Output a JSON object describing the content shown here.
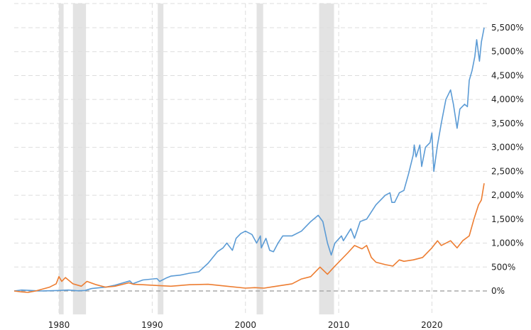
{
  "chart_data": {
    "type": "line",
    "title": "",
    "xlabel": "",
    "ylabel": "",
    "xlim": [
      1975.2,
      2025.6
    ],
    "ylim": [
      -250,
      6000
    ],
    "grid": true,
    "y_axis_side": "right",
    "x_ticks": [
      1980,
      1990,
      2000,
      2010,
      2020
    ],
    "x_tick_labels": [
      "1980",
      "1990",
      "2000",
      "2010",
      "2020"
    ],
    "y_ticks": [
      0,
      500,
      1000,
      1500,
      2000,
      2500,
      3000,
      3500,
      4000,
      4500,
      5000,
      5500
    ],
    "y_tick_labels": [
      "0%",
      "500%",
      "1,000%",
      "1,500%",
      "2,000%",
      "2,500%",
      "3,000%",
      "3,500%",
      "4,000%",
      "4,500%",
      "5,000%",
      "5,500%"
    ],
    "recessions": [
      [
        1980.0,
        1980.5
      ],
      [
        1981.5,
        1982.9
      ],
      [
        1990.6,
        1991.2
      ],
      [
        2001.2,
        2001.9
      ],
      [
        2007.9,
        2009.5
      ]
    ],
    "series": [
      {
        "name": "Blue series",
        "color": "#5b9bd5",
        "points": [
          [
            1975.2,
            0
          ],
          [
            1976,
            20
          ],
          [
            1977,
            10
          ],
          [
            1978,
            0
          ],
          [
            1979,
            5
          ],
          [
            1980,
            10
          ],
          [
            1981,
            20
          ],
          [
            1982,
            5
          ],
          [
            1982.8,
            10
          ],
          [
            1983.5,
            50
          ],
          [
            1985,
            80
          ],
          [
            1986,
            120
          ],
          [
            1987.6,
            210
          ],
          [
            1987.9,
            150
          ],
          [
            1989,
            230
          ],
          [
            1990.5,
            260
          ],
          [
            1990.8,
            200
          ],
          [
            1991.5,
            270
          ],
          [
            1992,
            310
          ],
          [
            1993,
            330
          ],
          [
            1994,
            370
          ],
          [
            1995,
            400
          ],
          [
            1996,
            580
          ],
          [
            1997,
            820
          ],
          [
            1997.6,
            900
          ],
          [
            1998,
            1000
          ],
          [
            1998.6,
            850
          ],
          [
            1999,
            1100
          ],
          [
            1999.5,
            1200
          ],
          [
            2000,
            1250
          ],
          [
            2000.7,
            1180
          ],
          [
            2001.2,
            1000
          ],
          [
            2001.6,
            1150
          ],
          [
            2001.7,
            900
          ],
          [
            2002.2,
            1100
          ],
          [
            2002.6,
            850
          ],
          [
            2003,
            820
          ],
          [
            2003.5,
            1000
          ],
          [
            2004,
            1150
          ],
          [
            2005,
            1150
          ],
          [
            2006,
            1250
          ],
          [
            2007,
            1450
          ],
          [
            2007.8,
            1580
          ],
          [
            2008.3,
            1450
          ],
          [
            2008.8,
            1000
          ],
          [
            2009.2,
            750
          ],
          [
            2009.6,
            1000
          ],
          [
            2010.3,
            1150
          ],
          [
            2010.5,
            1050
          ],
          [
            2011.3,
            1300
          ],
          [
            2011.7,
            1100
          ],
          [
            2012.3,
            1450
          ],
          [
            2013,
            1500
          ],
          [
            2014,
            1800
          ],
          [
            2015,
            2000
          ],
          [
            2015.5,
            2050
          ],
          [
            2015.7,
            1850
          ],
          [
            2016,
            1850
          ],
          [
            2016.5,
            2050
          ],
          [
            2017,
            2100
          ],
          [
            2017.5,
            2450
          ],
          [
            2018,
            2850
          ],
          [
            2018.1,
            3050
          ],
          [
            2018.3,
            2800
          ],
          [
            2018.7,
            3050
          ],
          [
            2018.9,
            2600
          ],
          [
            2019.3,
            3000
          ],
          [
            2019.8,
            3100
          ],
          [
            2020.0,
            3300
          ],
          [
            2020.2,
            2500
          ],
          [
            2020.6,
            3050
          ],
          [
            2021,
            3500
          ],
          [
            2021.5,
            4000
          ],
          [
            2022,
            4200
          ],
          [
            2022.3,
            3900
          ],
          [
            2022.7,
            3400
          ],
          [
            2023,
            3800
          ],
          [
            2023.5,
            3900
          ],
          [
            2023.8,
            3850
          ],
          [
            2024,
            4400
          ],
          [
            2024.3,
            4600
          ],
          [
            2024.6,
            4900
          ],
          [
            2024.8,
            5250
          ],
          [
            2025.1,
            4800
          ],
          [
            2025.3,
            5200
          ],
          [
            2025.6,
            5500
          ]
        ]
      },
      {
        "name": "Orange series",
        "color": "#ed7d31",
        "points": [
          [
            1975.2,
            0
          ],
          [
            1976,
            -20
          ],
          [
            1976.7,
            -30
          ],
          [
            1977.5,
            0
          ],
          [
            1979,
            80
          ],
          [
            1979.7,
            150
          ],
          [
            1980,
            300
          ],
          [
            1980.3,
            200
          ],
          [
            1980.7,
            280
          ],
          [
            1981.5,
            150
          ],
          [
            1982.4,
            100
          ],
          [
            1983,
            200
          ],
          [
            1984,
            130
          ],
          [
            1985,
            80
          ],
          [
            1986,
            100
          ],
          [
            1987.5,
            170
          ],
          [
            1988,
            140
          ],
          [
            1989,
            130
          ],
          [
            1990,
            120
          ],
          [
            1992,
            100
          ],
          [
            1994,
            130
          ],
          [
            1996,
            140
          ],
          [
            1998,
            100
          ],
          [
            2000,
            60
          ],
          [
            2001,
            70
          ],
          [
            2002,
            60
          ],
          [
            2003,
            90
          ],
          [
            2004,
            120
          ],
          [
            2005,
            150
          ],
          [
            2006,
            250
          ],
          [
            2007,
            300
          ],
          [
            2008,
            500
          ],
          [
            2008.8,
            350
          ],
          [
            2009.5,
            500
          ],
          [
            2010,
            600
          ],
          [
            2011,
            800
          ],
          [
            2011.7,
            950
          ],
          [
            2012.5,
            880
          ],
          [
            2013,
            950
          ],
          [
            2013.5,
            700
          ],
          [
            2014,
            600
          ],
          [
            2015,
            550
          ],
          [
            2015.8,
            520
          ],
          [
            2016.5,
            650
          ],
          [
            2017,
            620
          ],
          [
            2018,
            650
          ],
          [
            2019,
            700
          ],
          [
            2020,
            900
          ],
          [
            2020.6,
            1050
          ],
          [
            2021,
            950
          ],
          [
            2022,
            1050
          ],
          [
            2022.7,
            900
          ],
          [
            2023.3,
            1050
          ],
          [
            2024,
            1150
          ],
          [
            2024.5,
            1500
          ],
          [
            2025,
            1800
          ],
          [
            2025.3,
            1900
          ],
          [
            2025.6,
            2250
          ]
        ]
      }
    ]
  }
}
